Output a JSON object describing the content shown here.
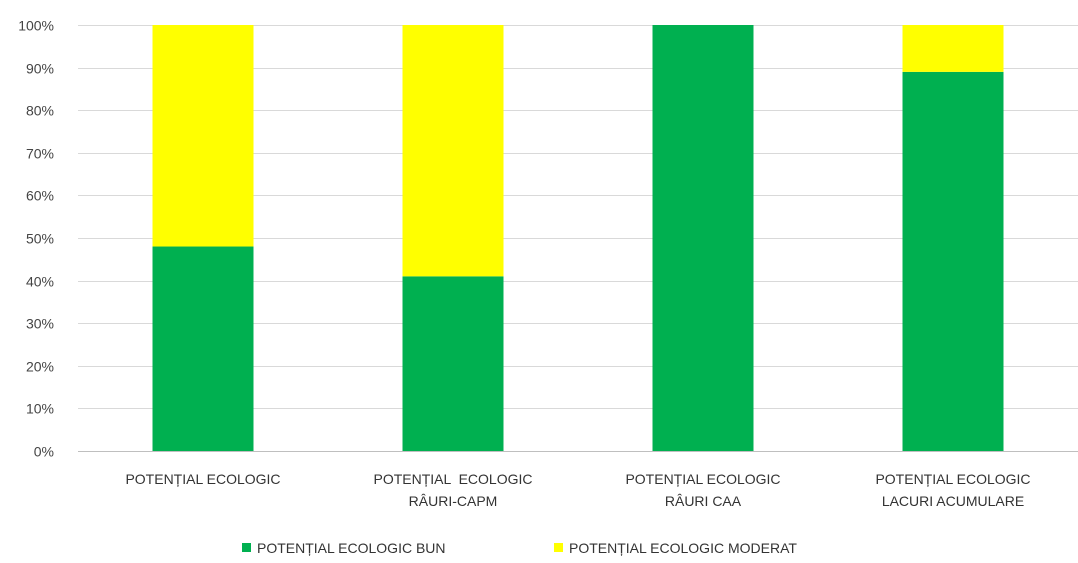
{
  "title": "",
  "chart_data": {
    "type": "bar",
    "stacked": true,
    "categories": [
      [
        "POTENȚIAL ECOLOGIC"
      ],
      [
        "POTENȚIAL  ECOLOGIC",
        "RÂURI-CAPM"
      ],
      [
        "POTENȚIAL ECOLOGIC",
        "RÂURI CAA"
      ],
      [
        "POTENȚIAL ECOLOGIC",
        "LACURI ACUMULARE"
      ]
    ],
    "series": [
      {
        "name": "POTENȚIAL ECOLOGIC BUN",
        "color": "#00b050",
        "values": [
          48,
          41,
          100,
          89
        ]
      },
      {
        "name": "POTENȚIAL ECOLOGIC MODERAT",
        "color": "#ffff00",
        "values": [
          52,
          59,
          0,
          11
        ]
      }
    ],
    "y_ticks": [
      "0%",
      "10%",
      "20%",
      "30%",
      "40%",
      "50%",
      "60%",
      "70%",
      "80%",
      "90%",
      "100%"
    ],
    "ylim": [
      0,
      100
    ],
    "grid": true,
    "legend_position": "bottom"
  }
}
